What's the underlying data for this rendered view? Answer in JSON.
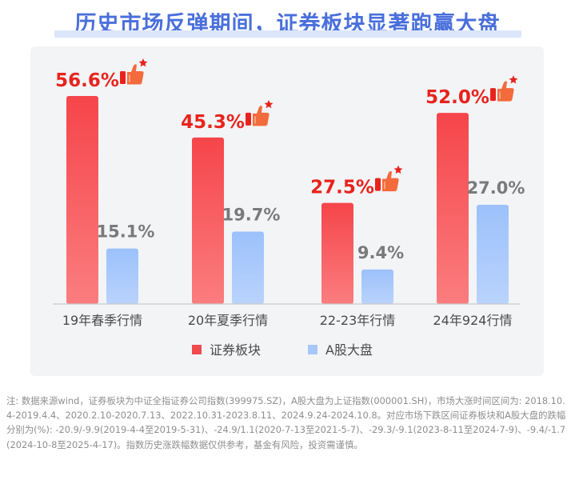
{
  "title": "历史市场反弹期间，证券板块显著跑赢大盘",
  "chart_data": {
    "type": "bar",
    "categories": [
      "19年春季行情",
      "20年夏季行情",
      "22-23年行情",
      "24年924行情"
    ],
    "series": [
      {
        "name": "证券板块",
        "values": [
          56.6,
          45.3,
          27.5,
          52.0
        ],
        "labels": [
          "56.6%",
          "45.3%",
          "27.5%",
          "52.0%"
        ],
        "color": "#f0494e"
      },
      {
        "name": "A股大盘",
        "values": [
          15.1,
          19.7,
          9.4,
          27.0
        ],
        "labels": [
          "15.1%",
          "19.7%",
          "9.4%",
          "27.0%"
        ],
        "color": "#a6c7fb"
      }
    ],
    "ylim": [
      0,
      65
    ],
    "grid": false,
    "legend": "bottom-center",
    "annotation_icon": "thumbs-up-icon"
  },
  "colors": {
    "title": "#4a6fdc",
    "highlight_label": "#e8231d",
    "secondary_label": "#7a7a7a",
    "panel_bg": "#f3f4f6"
  },
  "footnote": "注: 数据来源wind，证券板块为中证全指证券公司指数(399975.SZ)，A股大盘为上证指数(000001.SH)，市场大涨时间区间为: 2018.10.4-2019.4.4、2020.2.10-2020.7.13、2022.10.31-2023.8.11、2024.9.24-2024.10.8。对应市场下跌区间证券板块和A股大盘的跌幅分别为(%): -20.9/-9.9(2019-4-4至2019-5-31)、-24.9/1.1(2020-7-13至2021-5-7)、-29.3/-9.1(2023-8-11至2024-7-9)、-9.4/-1.7(2024-10-8至2025-4-17)。指数历史涨跌幅数据仅供参考，基金有风险，投资需谨慎。"
}
